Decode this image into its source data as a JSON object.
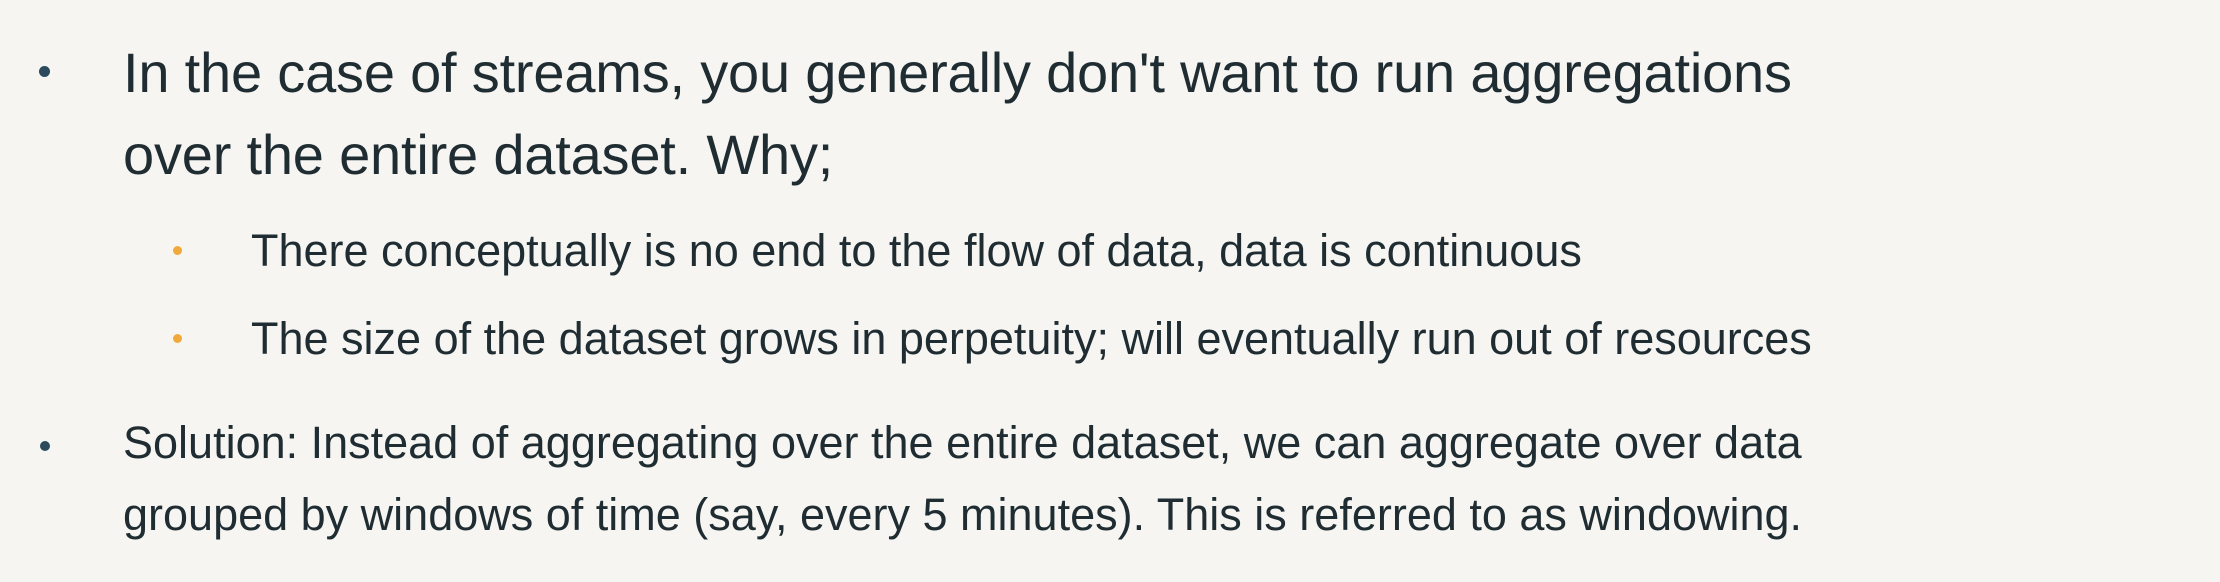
{
  "colors": {
    "background": "#f6f5f1",
    "text": "#1f2d33",
    "primary_bullet": "#2b4a5c",
    "secondary_bullet": "#f2a93b"
  },
  "slide": {
    "bullets": [
      {
        "level": 1,
        "text_line1": "In the case of streams, you generally don't want to run aggregations",
        "text_line2": "over the entire dataset. Why;"
      },
      {
        "level": 2,
        "text": "There conceptually is no end to the flow of data, data is continuous"
      },
      {
        "level": 2,
        "text": "The size of the dataset grows in perpetuity; will eventually run out of resources"
      },
      {
        "level": 1,
        "text_line1": "Solution: Instead of aggregating over the entire dataset, we can aggregate over data",
        "text_line2": "grouped by windows of time (say, every 5 minutes). This is referred to as windowing."
      }
    ]
  }
}
